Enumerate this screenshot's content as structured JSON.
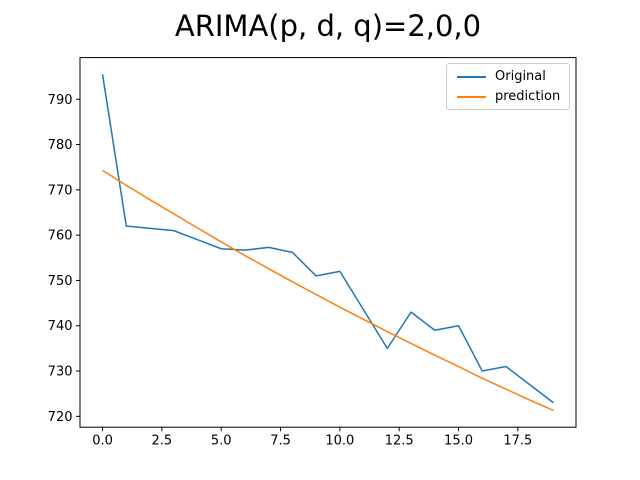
{
  "title": "ARIMA(p, d, q)=2,0,0",
  "chart_data": {
    "type": "line",
    "title": "ARIMA(p, d, q)=2,0,0",
    "xlabel": "",
    "ylabel": "",
    "grid": false,
    "legend_position": "upper right",
    "x": [
      0,
      1,
      2,
      3,
      4,
      5,
      6,
      7,
      8,
      9,
      10,
      11,
      12,
      13,
      14,
      15,
      16,
      17,
      18,
      19
    ],
    "series": [
      {
        "name": "Original",
        "color": "#1f77b4",
        "values": [
          795.5,
          762.0,
          761.5,
          761.0,
          759.0,
          757.0,
          756.7,
          757.3,
          756.2,
          751.0,
          752.0,
          743.5,
          735.0,
          743.0,
          739.0,
          740.0,
          730.0,
          731.0,
          727.0,
          723.0
        ]
      },
      {
        "name": "prediction",
        "color": "#ff7f0e",
        "values": [
          774.3,
          771.0,
          767.8,
          764.7,
          761.6,
          758.5,
          755.5,
          752.6,
          749.7,
          746.9,
          744.1,
          741.4,
          738.7,
          736.1,
          733.5,
          731.0,
          728.4,
          726.0,
          723.6,
          721.3
        ]
      }
    ],
    "x_ticks": [
      0.0,
      2.5,
      5.0,
      7.5,
      10.0,
      12.5,
      15.0,
      17.5
    ],
    "x_tick_labels": [
      "0.0",
      "2.5",
      "5.0",
      "7.5",
      "10.0",
      "12.5",
      "15.0",
      "17.5"
    ],
    "y_ticks": [
      720,
      730,
      740,
      750,
      760,
      770,
      780,
      790
    ],
    "y_tick_labels": [
      "720",
      "730",
      "740",
      "750",
      "760",
      "770",
      "780",
      "790"
    ],
    "xlim": [
      -0.95,
      19.95
    ],
    "ylim": [
      717.6,
      799.2
    ]
  }
}
